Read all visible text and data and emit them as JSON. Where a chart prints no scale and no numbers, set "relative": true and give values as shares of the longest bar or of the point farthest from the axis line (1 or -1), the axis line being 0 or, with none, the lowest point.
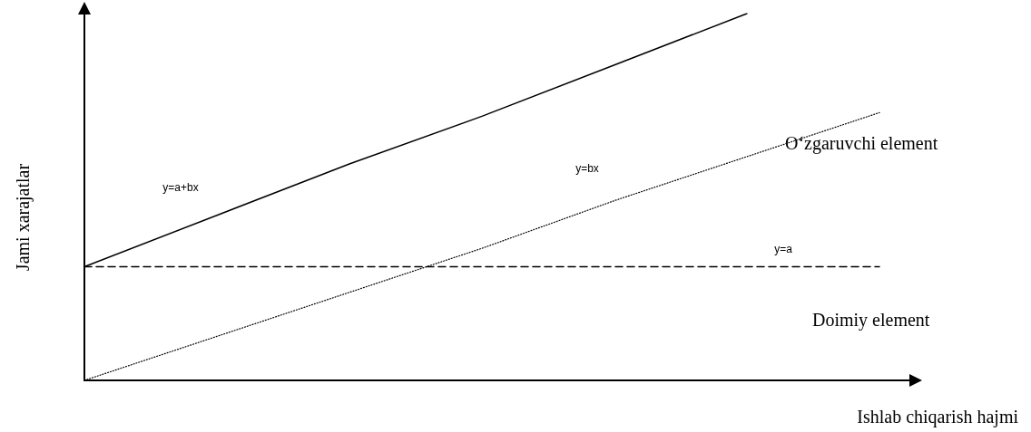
{
  "chart_data": {
    "type": "line",
    "relative": true,
    "xlabel": "Ishlab chiqarish hajmi",
    "ylabel": "Jami xarajatlar",
    "categories": [
      null,
      null,
      null,
      null,
      null,
      null,
      null
    ],
    "legend": false,
    "grid": false,
    "marker": "none",
    "series": [
      {
        "name": "y=a+bx",
        "color": "#000000",
        "line_style": "solid",
        "values": [
          0.31,
          0.45,
          0.59,
          0.72,
          0.86,
          1,
          null
        ]
      },
      {
        "name": "y=bx",
        "color": "#000000",
        "line_style": "dotted",
        "values": [
          0,
          0.12,
          0.24,
          0.36,
          0.49,
          0.61,
          0.73
        ]
      },
      {
        "name": "y=a",
        "color": "#000000",
        "line_style": "dashed",
        "values": [
          0.31,
          0.31,
          0.31,
          0.31,
          0.31,
          0.31,
          0.31
        ]
      }
    ],
    "annotations": [
      "O‘zgaruvchi element",
      "Doimiy element"
    ]
  }
}
